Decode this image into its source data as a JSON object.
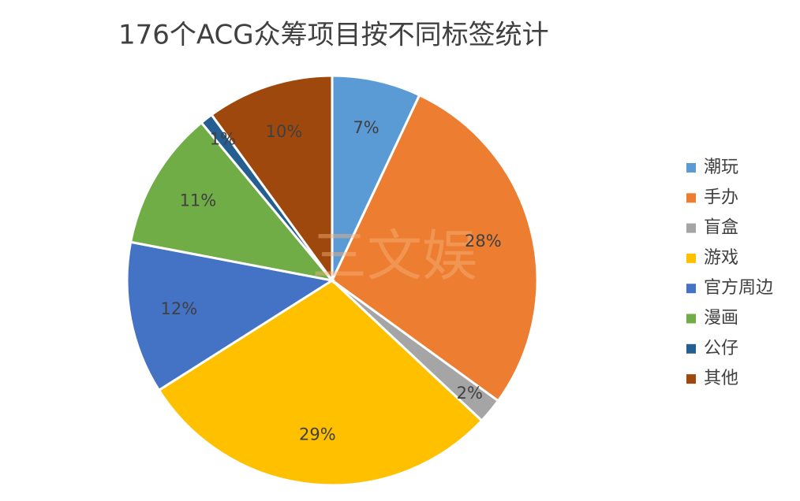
{
  "chart_data": {
    "type": "pie",
    "title": "176个ACG众筹项目按不同标签统计",
    "watermark": "三文娱",
    "categories": [
      "潮玩",
      "手办",
      "盲盒",
      "游戏",
      "官方周边",
      "漫画",
      "公仔",
      "其他"
    ],
    "values": [
      7,
      28,
      2,
      29,
      12,
      11,
      1,
      10
    ],
    "value_labels": [
      "7%",
      "28%",
      "2%",
      "29%",
      "12%",
      "11%",
      "1%",
      "10%"
    ],
    "colors": [
      "#5b9bd5",
      "#ed7d31",
      "#a5a5a5",
      "#ffc000",
      "#4472c4",
      "#70ad47",
      "#255e91",
      "#9e480e"
    ],
    "legend": "right"
  }
}
